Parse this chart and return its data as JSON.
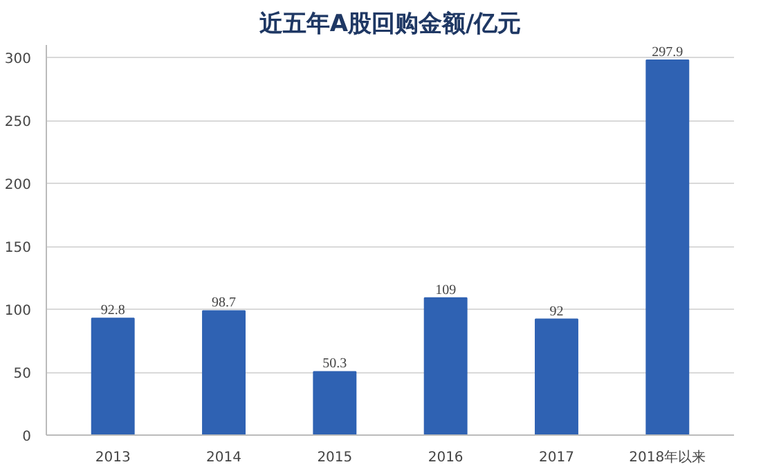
{
  "chart_data": {
    "type": "bar",
    "title": "近五年A股回购金额/亿元",
    "categories": [
      "2013",
      "2014",
      "2015",
      "2016",
      "2017",
      "2018年以来"
    ],
    "values": [
      92.8,
      98.7,
      50.3,
      109,
      92,
      297.9
    ],
    "color": "#2f62b3",
    "ylim": [
      0,
      310
    ],
    "yticks": [
      0,
      50,
      100,
      150,
      200,
      250,
      300
    ],
    "grid": "y",
    "data_labels": true
  }
}
